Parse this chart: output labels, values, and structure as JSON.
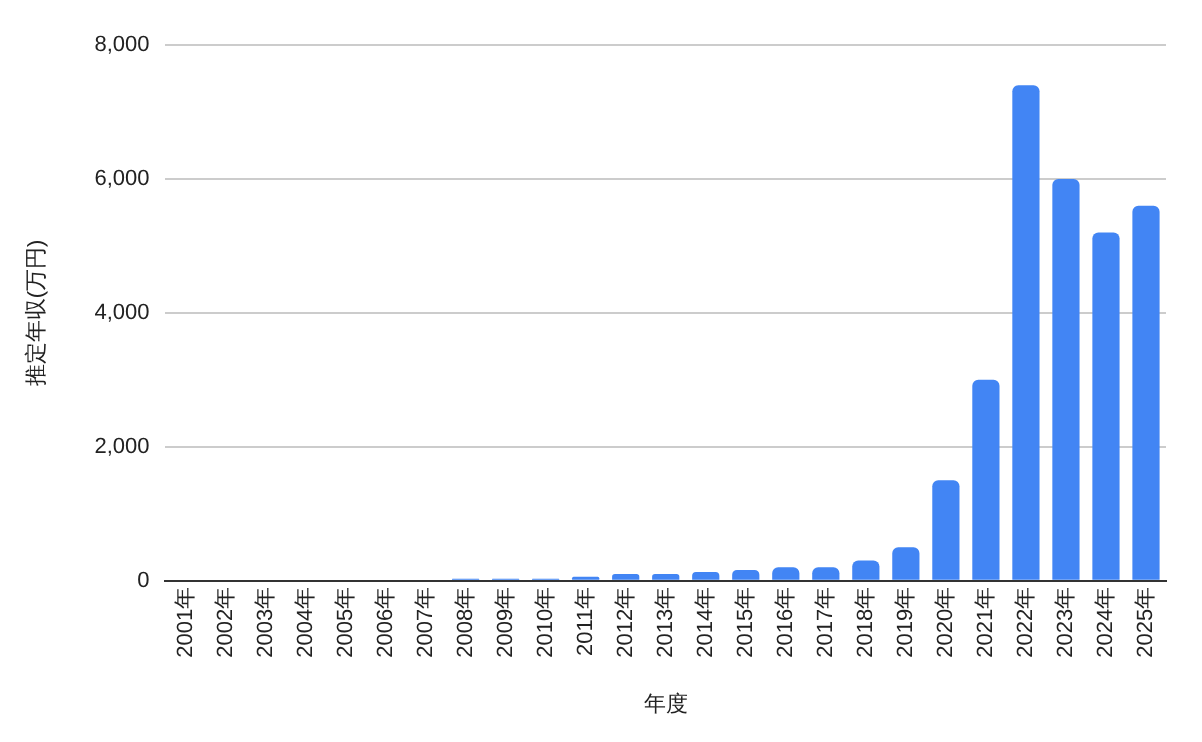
{
  "chart_data": {
    "type": "bar",
    "xlabel": "年度",
    "ylabel": "推定年収(万円)",
    "categories": [
      "2001年",
      "2002年",
      "2003年",
      "2004年",
      "2005年",
      "2006年",
      "2007年",
      "2008年",
      "2009年",
      "2010年",
      "2011年",
      "2012年",
      "2013年",
      "2014年",
      "2015年",
      "2016年",
      "2017年",
      "2018年",
      "2019年",
      "2020年",
      "2021年",
      "2022年",
      "2023年",
      "2024年",
      "2025年"
    ],
    "values": [
      0,
      0,
      0,
      0,
      0,
      0,
      0,
      30,
      30,
      30,
      60,
      100,
      100,
      130,
      160,
      200,
      200,
      300,
      500,
      1500,
      3000,
      7400,
      6000,
      5200,
      5600
    ],
    "color": "#4285f4",
    "ylim": [
      0,
      8000
    ],
    "yticks": [
      0,
      {
        "value": 2000,
        "label": "2,000"
      },
      {
        "value": 4000,
        "label": "4,000"
      },
      {
        "value": 6000,
        "label": "6,000"
      },
      {
        "value": 8000,
        "label": "8,000"
      }
    ],
    "grid": "y",
    "legend": false
  }
}
